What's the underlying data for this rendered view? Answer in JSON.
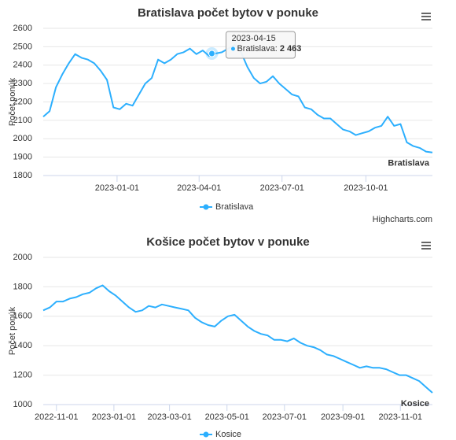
{
  "chart_data": [
    {
      "type": "line",
      "title": "Bratislava počet bytov v ponuke",
      "y_label": "Počet ponúk",
      "x": [
        "2022-10-12",
        "2022-10-19",
        "2022-10-26",
        "2022-11-02",
        "2022-11-09",
        "2022-11-16",
        "2022-11-23",
        "2022-11-30",
        "2022-12-07",
        "2022-12-14",
        "2022-12-21",
        "2022-12-28",
        "2023-01-04",
        "2023-01-11",
        "2023-01-18",
        "2023-01-25",
        "2023-02-01",
        "2023-02-08",
        "2023-02-15",
        "2023-02-22",
        "2023-03-01",
        "2023-03-08",
        "2023-03-15",
        "2023-03-22",
        "2023-03-29",
        "2023-04-05",
        "2023-04-12",
        "2023-04-19",
        "2023-04-26",
        "2023-05-03",
        "2023-05-10",
        "2023-05-17",
        "2023-05-24",
        "2023-05-31",
        "2023-06-07",
        "2023-06-14",
        "2023-06-21",
        "2023-06-28",
        "2023-07-05",
        "2023-07-12",
        "2023-07-19",
        "2023-07-26",
        "2023-08-02",
        "2023-08-09",
        "2023-08-16",
        "2023-08-23",
        "2023-08-30",
        "2023-09-06",
        "2023-09-13",
        "2023-09-20",
        "2023-09-27",
        "2023-10-04",
        "2023-10-11",
        "2023-10-18",
        "2023-10-25",
        "2023-11-01",
        "2023-11-08",
        "2023-11-15",
        "2023-11-22",
        "2023-11-29",
        "2023-12-06",
        "2023-12-13"
      ],
      "series": [
        {
          "name": "Bratislava",
          "color": "#2caffe",
          "values": [
            2120,
            2150,
            2280,
            2350,
            2410,
            2460,
            2440,
            2430,
            2410,
            2370,
            2320,
            2170,
            2160,
            2190,
            2180,
            2240,
            2300,
            2330,
            2430,
            2410,
            2430,
            2460,
            2470,
            2490,
            2460,
            2480,
            2450,
            2463,
            2470,
            2490,
            2510,
            2470,
            2390,
            2330,
            2300,
            2310,
            2340,
            2300,
            2270,
            2240,
            2230,
            2170,
            2160,
            2130,
            2110,
            2110,
            2080,
            2050,
            2040,
            2020,
            2030,
            2040,
            2060,
            2070,
            2120,
            2070,
            2080,
            1980,
            1960,
            1950,
            1930,
            1925
          ]
        }
      ],
      "xlim": [
        "2022-10-12",
        "2023-12-13"
      ],
      "xticks": [
        "2023-01-01",
        "2023-04-01",
        "2023-07-01",
        "2023-10-01"
      ],
      "ylim": [
        1800,
        2600
      ],
      "yticks": [
        1800,
        1900,
        2000,
        2100,
        2200,
        2300,
        2400,
        2500,
        2600
      ],
      "grid": true,
      "tooltip": {
        "x": "2023-04-15",
        "name": "Bratislava:",
        "value": 2463,
        "value_label": "2 463"
      },
      "credits": "Highcharts.com"
    },
    {
      "type": "line",
      "title": "Košice počet bytov v ponuke",
      "y_label": "Počet ponúk",
      "x": [
        "2022-10-18",
        "2022-10-25",
        "2022-11-01",
        "2022-11-08",
        "2022-11-15",
        "2022-11-22",
        "2022-11-29",
        "2022-12-06",
        "2022-12-13",
        "2022-12-20",
        "2022-12-27",
        "2023-01-03",
        "2023-01-10",
        "2023-01-17",
        "2023-01-24",
        "2023-01-31",
        "2023-02-07",
        "2023-02-14",
        "2023-02-21",
        "2023-02-28",
        "2023-03-07",
        "2023-03-14",
        "2023-03-21",
        "2023-03-28",
        "2023-04-04",
        "2023-04-11",
        "2023-04-18",
        "2023-04-25",
        "2023-05-02",
        "2023-05-09",
        "2023-05-16",
        "2023-05-23",
        "2023-05-30",
        "2023-06-06",
        "2023-06-13",
        "2023-06-20",
        "2023-06-27",
        "2023-07-04",
        "2023-07-11",
        "2023-07-18",
        "2023-07-25",
        "2023-08-01",
        "2023-08-08",
        "2023-08-15",
        "2023-08-22",
        "2023-08-29",
        "2023-09-05",
        "2023-09-12",
        "2023-09-19",
        "2023-09-26",
        "2023-10-03",
        "2023-10-10",
        "2023-10-17",
        "2023-10-24",
        "2023-10-31",
        "2023-11-07",
        "2023-11-14",
        "2023-11-21",
        "2023-11-28",
        "2023-12-05"
      ],
      "series": [
        {
          "name": "Kosice",
          "color": "#2caffe",
          "values": [
            1640,
            1660,
            1700,
            1700,
            1720,
            1730,
            1750,
            1760,
            1790,
            1810,
            1770,
            1740,
            1700,
            1660,
            1630,
            1640,
            1670,
            1660,
            1680,
            1670,
            1660,
            1650,
            1640,
            1590,
            1560,
            1540,
            1530,
            1570,
            1600,
            1610,
            1570,
            1530,
            1500,
            1480,
            1470,
            1440,
            1440,
            1430,
            1450,
            1420,
            1400,
            1390,
            1370,
            1340,
            1330,
            1310,
            1290,
            1270,
            1250,
            1260,
            1250,
            1250,
            1240,
            1220,
            1200,
            1200,
            1180,
            1160,
            1120,
            1080
          ]
        }
      ],
      "xlim": [
        "2022-10-18",
        "2023-12-05"
      ],
      "xticks": [
        "2022-11-01",
        "2023-01-01",
        "2023-03-01",
        "2023-05-01",
        "2023-07-01",
        "2023-09-01",
        "2023-11-01"
      ],
      "ylim": [
        1000,
        2000
      ],
      "yticks": [
        1000,
        1200,
        1400,
        1600,
        1800,
        2000
      ],
      "grid": true
    }
  ]
}
